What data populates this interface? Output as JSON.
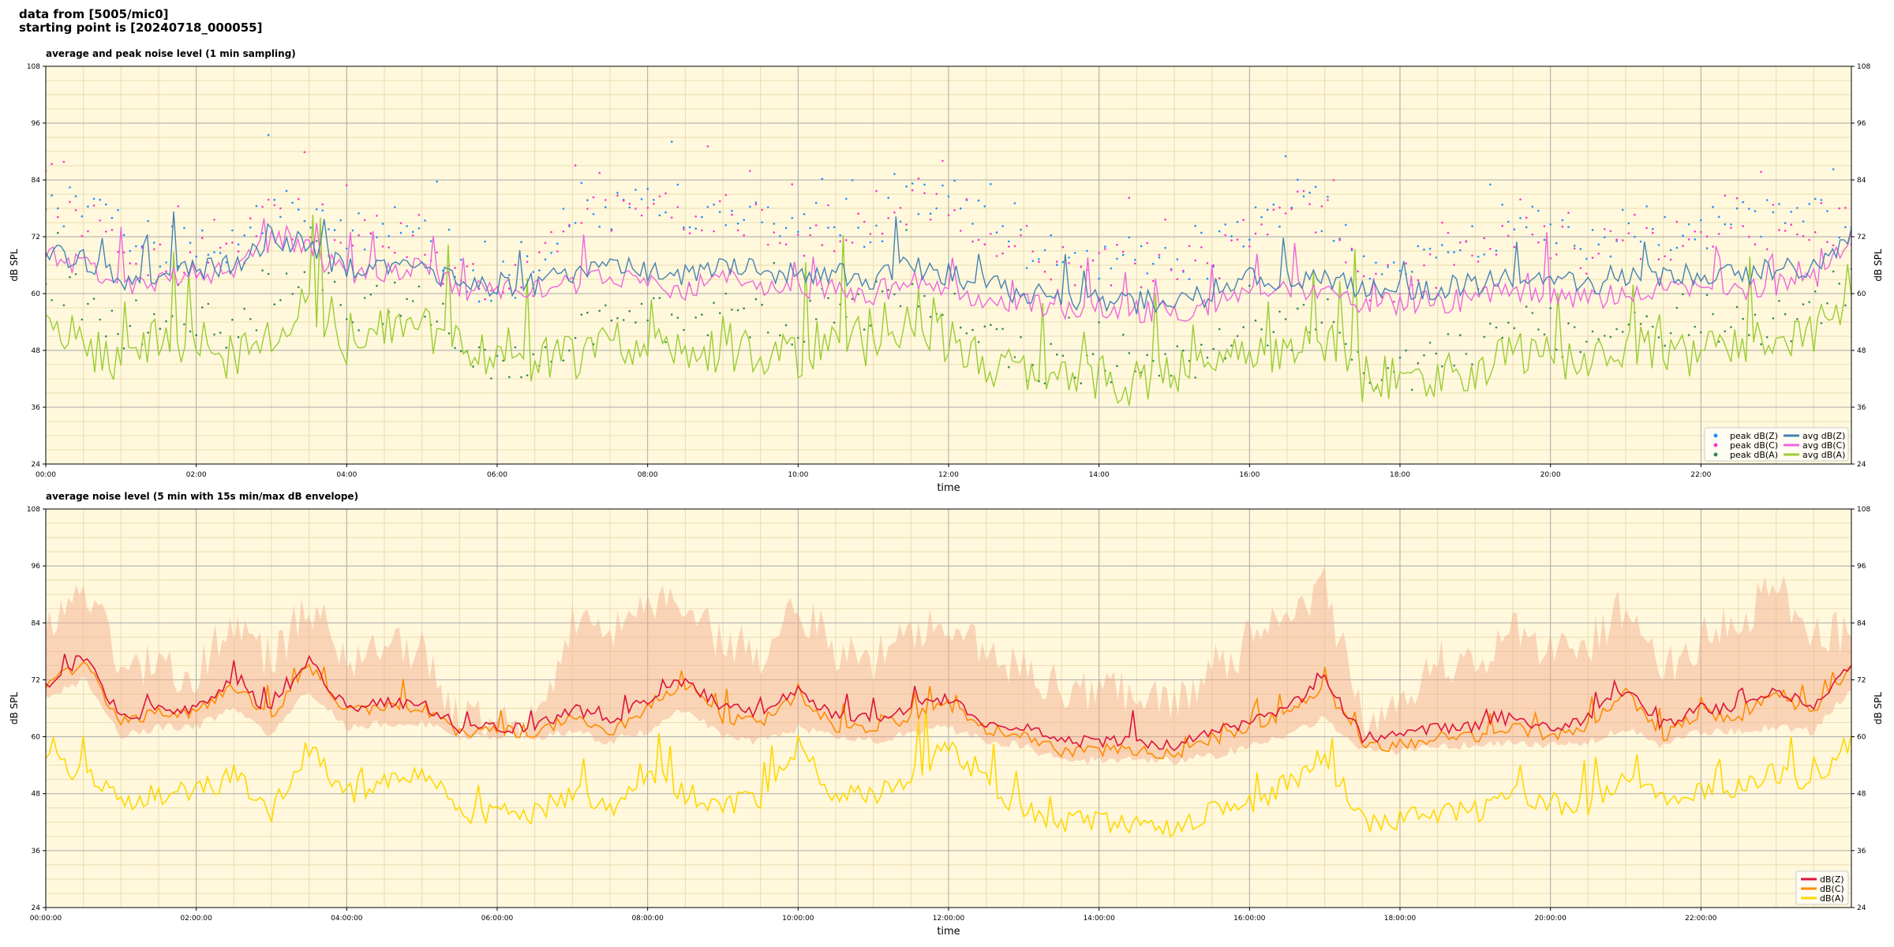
{
  "header": {
    "line1": "data from [5005/mic0]",
    "line2": "starting point is [20240718_000055]"
  },
  "colors": {
    "plot_bg": "#fff8dc",
    "grid_major": "#a9a9a9",
    "grid_minor": "#e8dcb0",
    "peak_z": "#1f8fff",
    "peak_c": "#ff33cc",
    "peak_a": "#2e8b57",
    "avg_z": "#4682b4",
    "avg_c": "#ee66dd",
    "avg_a": "#9acd32",
    "dbz": "#dc143c",
    "dbc": "#ff8c00",
    "dba": "#ffd700",
    "envelope": "#f4a88a"
  },
  "chart_data": [
    {
      "type": "line",
      "title": "average and peak noise level (1 min sampling)",
      "xlabel": "time",
      "ylabel": "dB SPL",
      "ylim": [
        24,
        108
      ],
      "xlim_hours": [
        0,
        24
      ],
      "yticks": [
        "24",
        "36",
        "48",
        "60",
        "72",
        "84",
        "96",
        "108"
      ],
      "xticks": [
        "00:00",
        "02:00",
        "04:00",
        "06:00",
        "08:00",
        "10:00",
        "12:00",
        "14:00",
        "16:00",
        "18:00",
        "20:00",
        "22:00"
      ],
      "grid": true,
      "legend": "bottom-right",
      "legend_entries": [
        {
          "label": "peak dB(Z)",
          "kind": "dot",
          "color": "#1f8fff"
        },
        {
          "label": "peak dB(C)",
          "kind": "dot",
          "color": "#ff33cc"
        },
        {
          "label": "peak dB(A)",
          "kind": "dot",
          "color": "#2e8b57"
        },
        {
          "label": "avg dB(Z)",
          "kind": "line",
          "color": "#4682b4"
        },
        {
          "label": "avg dB(C)",
          "kind": "line",
          "color": "#ee66dd"
        },
        {
          "label": "avg dB(A)",
          "kind": "line",
          "color": "#9acd32"
        }
      ],
      "x_hours": [
        0,
        0.5,
        1,
        1.5,
        2,
        2.5,
        3,
        3.5,
        4,
        4.5,
        5,
        5.5,
        6,
        6.5,
        7,
        7.5,
        8,
        8.5,
        9,
        9.5,
        10,
        10.5,
        11,
        11.5,
        12,
        12.5,
        13,
        13.5,
        14,
        14.5,
        15,
        15.5,
        16,
        16.5,
        17,
        17.5,
        18,
        18.5,
        19,
        19.5,
        20,
        20.5,
        21,
        21.5,
        22,
        22.5,
        23,
        23.5,
        24
      ],
      "series": [
        {
          "name": "avg dB(Z)",
          "values": [
            69,
            67,
            63,
            64,
            65,
            66,
            72,
            70,
            65,
            66,
            66,
            62,
            62,
            62,
            64,
            66,
            65,
            64,
            66,
            65,
            64,
            64,
            63,
            66,
            64,
            62,
            60,
            59,
            59,
            58,
            59,
            59,
            63,
            63,
            63,
            61,
            61,
            61,
            62,
            63,
            63,
            62,
            63,
            64,
            64,
            64,
            65,
            66,
            72
          ]
        },
        {
          "name": "avg dB(C)",
          "values": [
            68,
            66,
            62,
            63,
            64,
            65,
            71,
            69,
            64,
            65,
            65,
            61,
            61,
            61,
            62,
            64,
            62,
            61,
            63,
            62,
            61,
            61,
            60,
            63,
            61,
            59,
            58,
            57,
            57,
            56,
            56,
            57,
            61,
            61,
            61,
            58,
            58,
            58,
            59,
            60,
            60,
            59,
            60,
            61,
            61,
            61,
            62,
            63,
            71
          ]
        },
        {
          "name": "avg dB(A)",
          "values": [
            56,
            49,
            46,
            50,
            50,
            46,
            52,
            60,
            47,
            52,
            54,
            48,
            46,
            46,
            46,
            50,
            50,
            46,
            48,
            47,
            47,
            52,
            49,
            55,
            50,
            45,
            44,
            42,
            42,
            41,
            43,
            46,
            46,
            47,
            50,
            42,
            42,
            43,
            44,
            48,
            46,
            46,
            49,
            47,
            47,
            49,
            49,
            52,
            60
          ]
        }
      ],
      "peak_series": [
        {
          "name": "peak dB(Z)",
          "values": [
            80,
            78,
            72,
            70,
            70,
            70,
            78,
            78,
            72,
            74,
            74,
            63,
            63,
            63,
            80,
            78,
            80,
            78,
            78,
            78,
            74,
            76,
            74,
            82,
            80,
            74,
            70,
            68,
            68,
            68,
            68,
            68,
            74,
            80,
            78,
            64,
            64,
            68,
            70,
            76,
            74,
            70,
            74,
            74,
            74,
            76,
            76,
            78,
            76
          ]
        },
        {
          "name": "peak dB(C)",
          "values": [
            78,
            76,
            70,
            68,
            68,
            68,
            76,
            76,
            70,
            72,
            72,
            62,
            62,
            62,
            78,
            76,
            78,
            76,
            76,
            76,
            72,
            74,
            72,
            80,
            78,
            72,
            68,
            66,
            66,
            66,
            66,
            66,
            72,
            78,
            76,
            62,
            62,
            66,
            68,
            74,
            72,
            68,
            72,
            72,
            72,
            74,
            74,
            76,
            74
          ]
        },
        {
          "name": "peak dB(A)",
          "values": [
            64,
            58,
            52,
            56,
            56,
            52,
            60,
            66,
            54,
            58,
            60,
            48,
            46,
            46,
            52,
            56,
            56,
            52,
            54,
            54,
            54,
            58,
            56,
            62,
            58,
            50,
            46,
            44,
            44,
            43,
            44,
            48,
            50,
            52,
            56,
            44,
            44,
            46,
            48,
            54,
            52,
            50,
            54,
            52,
            52,
            54,
            54,
            56,
            62
          ]
        }
      ]
    },
    {
      "type": "line",
      "title": "average noise level (5 min with 15s min/max dB envelope)",
      "xlabel": "time",
      "ylabel": "dB SPL",
      "ylim": [
        24,
        108
      ],
      "xlim_hours": [
        0,
        24
      ],
      "yticks": [
        "24",
        "36",
        "48",
        "60",
        "72",
        "84",
        "96",
        "108"
      ],
      "xticks": [
        "00:00:00",
        "02:00:00",
        "04:00:00",
        "06:00:00",
        "08:00:00",
        "10:00:00",
        "12:00:00",
        "14:00:00",
        "16:00:00",
        "18:00:00",
        "20:00:00",
        "22:00:00"
      ],
      "grid": true,
      "legend": "bottom-right",
      "legend_entries": [
        {
          "label": "dB(Z)",
          "kind": "line",
          "color": "#dc143c"
        },
        {
          "label": "dB(C)",
          "kind": "line",
          "color": "#ff8c00"
        },
        {
          "label": "dB(A)",
          "kind": "line",
          "color": "#ffd700"
        }
      ],
      "x_hours": [
        0,
        0.5,
        1,
        1.5,
        2,
        2.5,
        3,
        3.5,
        4,
        4.5,
        5,
        5.5,
        6,
        6.5,
        7,
        7.5,
        8,
        8.5,
        9,
        9.5,
        10,
        10.5,
        11,
        11.5,
        12,
        12.5,
        13,
        13.5,
        14,
        14.5,
        15,
        15.5,
        16,
        16.5,
        17,
        17.5,
        18,
        18.5,
        19,
        19.5,
        20,
        20.5,
        21,
        21.5,
        22,
        22.5,
        23,
        23.5,
        24
      ],
      "series": [
        {
          "name": "dB(Z)",
          "values": [
            71,
            77,
            64,
            66,
            66,
            72,
            65,
            76,
            66,
            67,
            67,
            62,
            62,
            62,
            66,
            63,
            68,
            72,
            66,
            65,
            70,
            64,
            64,
            66,
            68,
            63,
            62,
            59,
            59,
            59,
            58,
            61,
            63,
            66,
            72,
            60,
            60,
            62,
            62,
            64,
            62,
            64,
            70,
            62,
            66,
            66,
            70,
            66,
            75
          ]
        },
        {
          "name": "dB(C)",
          "values": [
            70,
            76,
            63,
            65,
            65,
            71,
            64,
            75,
            65,
            66,
            66,
            61,
            61,
            61,
            64,
            61,
            66,
            71,
            64,
            63,
            69,
            62,
            62,
            64,
            67,
            61,
            60,
            57,
            57,
            57,
            56,
            59,
            62,
            65,
            71,
            58,
            58,
            60,
            60,
            62,
            60,
            62,
            69,
            60,
            65,
            64,
            69,
            65,
            74
          ]
        },
        {
          "name": "dB(A)",
          "values": [
            55,
            52,
            46,
            48,
            48,
            52,
            44,
            58,
            48,
            50,
            54,
            44,
            44,
            44,
            48,
            44,
            52,
            48,
            46,
            46,
            58,
            48,
            48,
            52,
            58,
            50,
            44,
            42,
            42,
            42,
            41,
            44,
            46,
            50,
            56,
            42,
            42,
            44,
            44,
            48,
            46,
            46,
            52,
            48,
            48,
            50,
            52,
            50,
            60
          ]
        }
      ],
      "envelope": {
        "name": "dB(Z) min/max envelope",
        "min": [
          68,
          72,
          60,
          62,
          62,
          66,
          60,
          70,
          62,
          63,
          63,
          60,
          60,
          60,
          61,
          59,
          61,
          66,
          60,
          59,
          62,
          60,
          59,
          61,
          62,
          59,
          58,
          55,
          55,
          55,
          55,
          56,
          58,
          60,
          64,
          57,
          57,
          58,
          58,
          59,
          58,
          59,
          62,
          58,
          61,
          61,
          62,
          61,
          70
        ],
        "max": [
          82,
          92,
          76,
          74,
          74,
          84,
          76,
          88,
          76,
          78,
          78,
          64,
          64,
          64,
          84,
          80,
          90,
          88,
          80,
          78,
          88,
          78,
          76,
          82,
          86,
          76,
          74,
          70,
          70,
          70,
          68,
          74,
          80,
          84,
          92,
          64,
          64,
          76,
          76,
          82,
          78,
          80,
          88,
          74,
          80,
          84,
          92,
          82,
          82
        ]
      }
    }
  ]
}
